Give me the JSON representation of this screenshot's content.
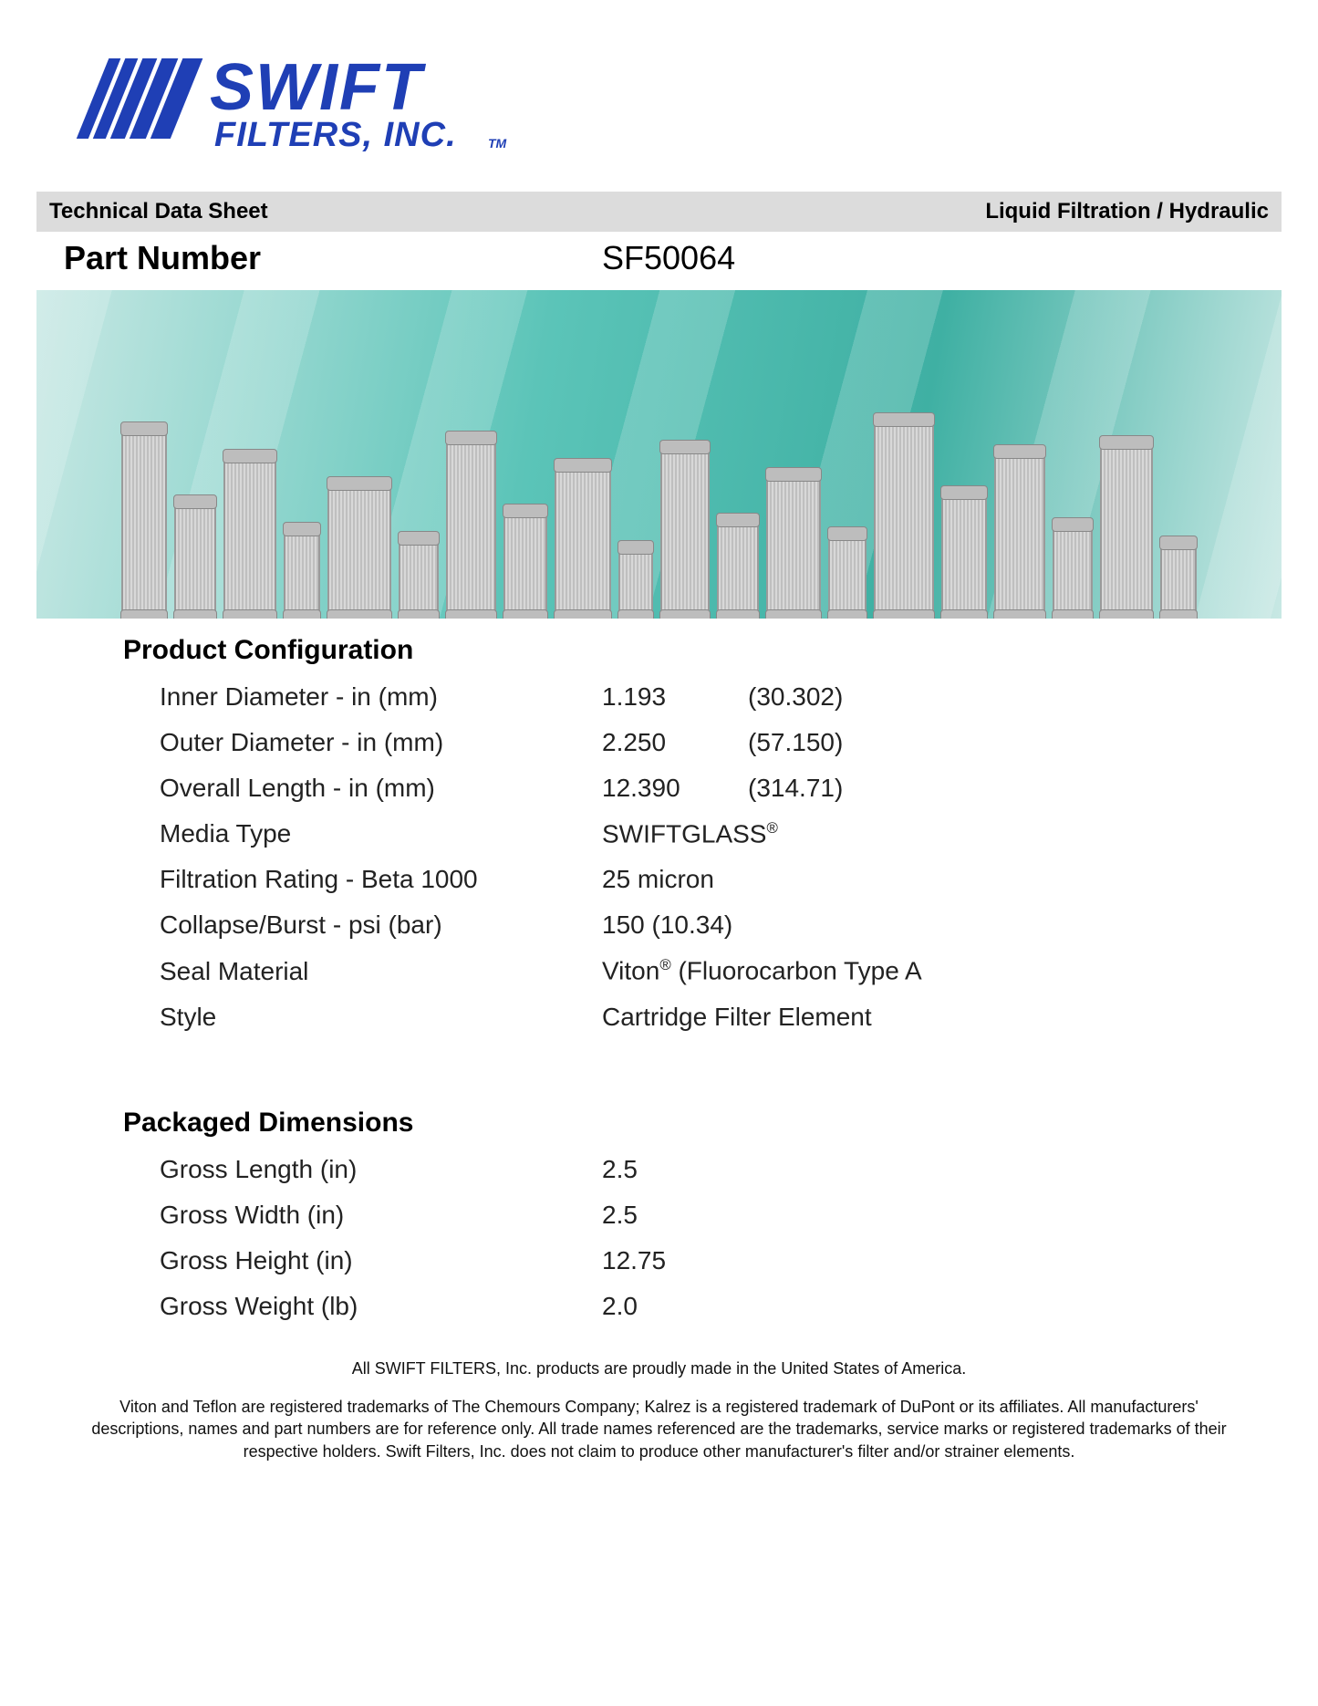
{
  "brand": {
    "name_top": "SWIFT",
    "name_bottom": "FILTERS, INC.",
    "tm": "TM",
    "color": "#1f3fb5"
  },
  "header": {
    "left": "Technical Data Sheet",
    "right": "Liquid Filtration / Hydraulic",
    "bg_color": "#dcdcdc"
  },
  "part": {
    "label": "Part Number",
    "value": "SF50064"
  },
  "hero": {
    "bg_start": "#c8e8e4",
    "bg_mid": "#5bc4b8",
    "bg_end": "#3fb0a3",
    "filter_color": "#bfbfbf"
  },
  "product_config": {
    "title": "Product Configuration",
    "rows": [
      {
        "label": "Inner Diameter - in (mm)",
        "v1": "1.193",
        "v2": "(30.302)"
      },
      {
        "label": "Outer Diameter - in (mm)",
        "v1": "2.250",
        "v2": "(57.150)"
      },
      {
        "label": "Overall Length - in (mm)",
        "v1": "12.390",
        "v2": "(314.71)"
      },
      {
        "label": "Media Type",
        "single_html": "SWIFTGLASS<sup>®</sup>"
      },
      {
        "label": "Filtration Rating - Beta 1000",
        "single": "25 micron"
      },
      {
        "label": "Collapse/Burst - psi (bar)",
        "single": "150 (10.34)"
      },
      {
        "label": "Seal Material",
        "single_html": "Viton<sup>®</sup> (Fluorocarbon Type A"
      },
      {
        "label": "Style",
        "single": "Cartridge Filter Element"
      }
    ]
  },
  "packaged": {
    "title": "Packaged Dimensions",
    "rows": [
      {
        "label": "Gross Length (in)",
        "value": "2.5"
      },
      {
        "label": "Gross Width (in)",
        "value": "2.5"
      },
      {
        "label": "Gross Height (in)",
        "value": "12.75"
      },
      {
        "label": "Gross Weight (lb)",
        "value": "2.0"
      }
    ]
  },
  "footer": {
    "line1": "All SWIFT FILTERS, Inc. products are proudly made in the United States of America.",
    "line2": "Viton and Teflon are registered trademarks of The Chemours Company; Kalrez is a registered trademark of DuPont or its affiliates. All manufacturers' descriptions, names and part numbers are for reference only. All trade names referenced are the trademarks, service marks or registered trademarks of their respective holders. Swift Filters, Inc. does not claim to produce other manufacturer's filter and/or strainer elements."
  }
}
